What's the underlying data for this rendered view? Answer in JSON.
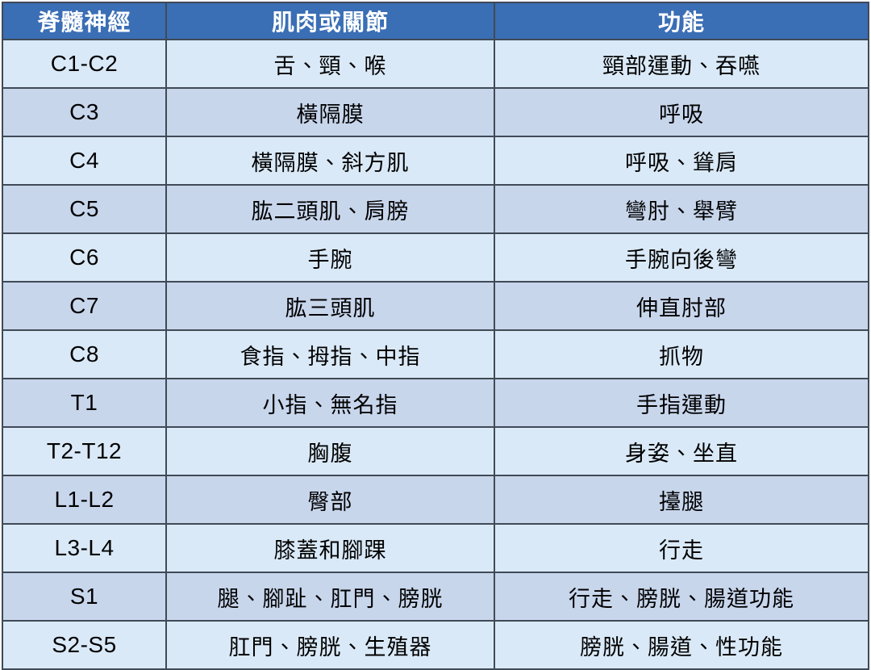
{
  "table": {
    "title": "spinal-nerve-function-table",
    "headers": [
      "脊髓神經",
      "肌肉或關節",
      "功能"
    ],
    "rows": [
      [
        "C1-C2",
        "舌、頸、喉",
        "頸部運動、吞嚥"
      ],
      [
        "C3",
        "橫隔膜",
        "呼吸"
      ],
      [
        "C4",
        "橫隔膜、斜方肌",
        "呼吸、聳肩"
      ],
      [
        "C5",
        "肱二頭肌、肩膀",
        "彎肘、舉臂"
      ],
      [
        "C6",
        "手腕",
        "手腕向後彎"
      ],
      [
        "C7",
        "肱三頭肌",
        "伸直肘部"
      ],
      [
        "C8",
        "食指、拇指、中指",
        "抓物"
      ],
      [
        "T1",
        "小指、無名指",
        "手指運動"
      ],
      [
        "T2-T12",
        "胸腹",
        "身姿、坐直"
      ],
      [
        "L1-L2",
        "臀部",
        "擡腿"
      ],
      [
        "L3-L4",
        "膝蓋和腳踝",
        "行走"
      ],
      [
        "S1",
        "腿、腳趾、肛門、膀胱",
        "行走、膀胱、腸道功能"
      ],
      [
        "S2-S5",
        "肛門、膀胱、生殖器",
        "膀胱、腸道、性功能"
      ]
    ],
    "colors": {
      "header_bg": "#3A6EB5",
      "header_text": "#FFFFFF",
      "row_light": "#DAE9F7",
      "row_dark": "#C8D6EC",
      "border": "#404A56",
      "body_text": "#000000"
    }
  }
}
